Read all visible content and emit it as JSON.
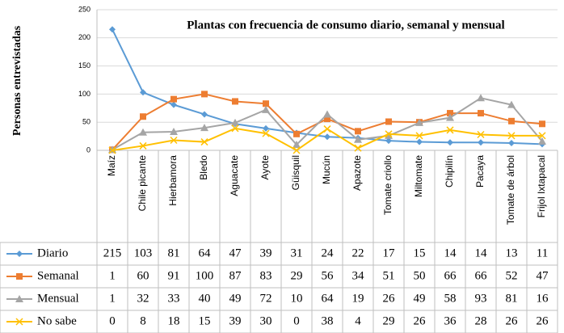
{
  "chart_data": {
    "type": "line",
    "title": "Plantas con frecuencia de consumo diario, semanal  y mensual",
    "y_label": "Personas entrevistadas",
    "categories": [
      "Maíz",
      "Chile picante",
      "Hierbamora",
      "Bledo",
      "Aguacate",
      "Ayote",
      "Güisquil",
      "Mucún",
      "Apazote",
      "Tomate criollo",
      "Miltomate",
      "Chipilín",
      "Pacaya",
      "Tomate de árbol",
      "Frijol Ixtapacal"
    ],
    "series": [
      {
        "name": "Diario",
        "color": "#5b9bd5",
        "marker": "diamond",
        "values": [
          215,
          103,
          81,
          64,
          47,
          39,
          31,
          24,
          22,
          17,
          15,
          14,
          14,
          13,
          11
        ]
      },
      {
        "name": "Semanal",
        "color": "#ed7d31",
        "marker": "square",
        "values": [
          1,
          60,
          91,
          100,
          87,
          83,
          29,
          56,
          34,
          51,
          50,
          66,
          66,
          52,
          47
        ]
      },
      {
        "name": "Mensual",
        "color": "#a5a5a5",
        "marker": "triangle",
        "values": [
          1,
          32,
          33,
          40,
          49,
          72,
          10,
          64,
          19,
          26,
          49,
          58,
          93,
          81,
          16
        ]
      },
      {
        "name": "No sabe",
        "color": "#ffc000",
        "marker": "x",
        "values": [
          0,
          8,
          18,
          15,
          39,
          30,
          0,
          38,
          4,
          29,
          26,
          36,
          28,
          26,
          26
        ]
      }
    ],
    "ylim": [
      0,
      250
    ],
    "yticks": [
      0,
      50,
      100,
      150,
      200,
      250
    ],
    "grid": true
  }
}
